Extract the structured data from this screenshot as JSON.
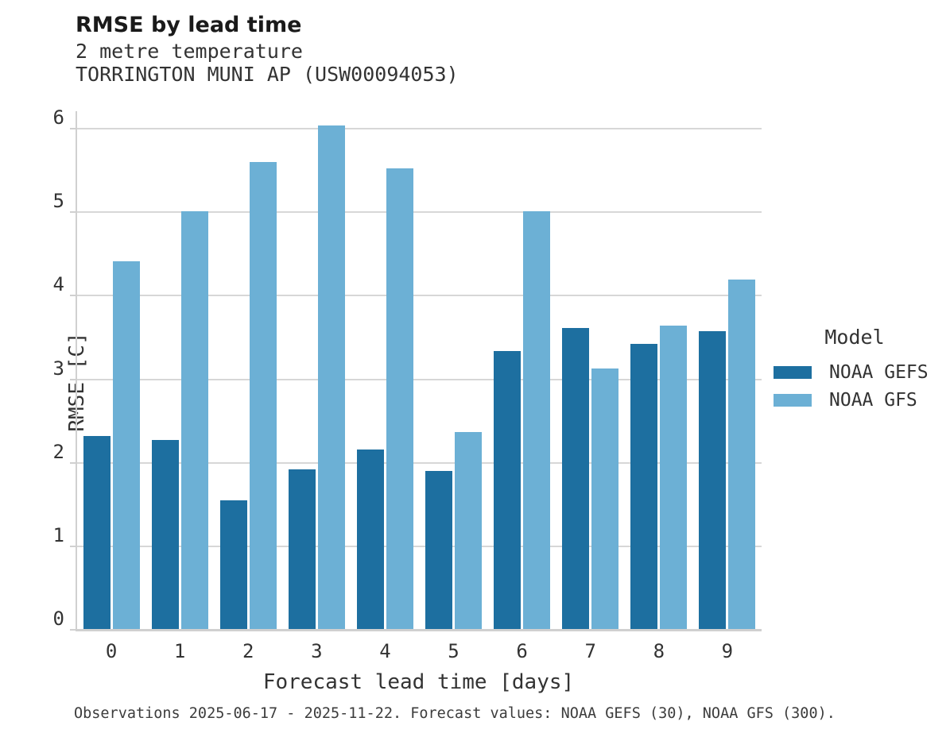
{
  "chart_data": {
    "type": "bar",
    "title": "RMSE by lead time",
    "subtitle": [
      "2 metre temperature",
      "TORRINGTON MUNI AP (USW00094053)"
    ],
    "xlabel": "Forecast lead time [days]",
    "ylabel": "RMSE [C]",
    "categories": [
      "0",
      "1",
      "2",
      "3",
      "4",
      "5",
      "6",
      "7",
      "8",
      "9"
    ],
    "series": [
      {
        "name": "NOAA GEFS",
        "color": "#1d6fa0",
        "values": [
          2.32,
          2.27,
          1.55,
          1.92,
          2.16,
          1.9,
          3.34,
          3.61,
          3.42,
          3.58
        ]
      },
      {
        "name": "NOAA GFS",
        "color": "#6cb0d5",
        "values": [
          4.41,
          5.01,
          5.6,
          6.04,
          5.53,
          2.37,
          5.01,
          3.13,
          3.64,
          4.19
        ]
      }
    ],
    "ylim": [
      0,
      6.21
    ],
    "yticks": [
      0,
      1,
      2,
      3,
      4,
      5,
      6
    ],
    "grid": true,
    "legend_title": "Model",
    "legend_position": "right",
    "caption": "Observations 2025-06-17 - 2025-11-22. Forecast values: NOAA GEFS (30), NOAA GFS (300)."
  },
  "colors": {
    "gefs_bar": "#1d6fa0",
    "gfs_bar": "#6cb0d5",
    "gridline": "#d7d7d7",
    "axis_spine": "#d0d0d0",
    "text": "#333333",
    "title_text": "#1a1a1a"
  }
}
